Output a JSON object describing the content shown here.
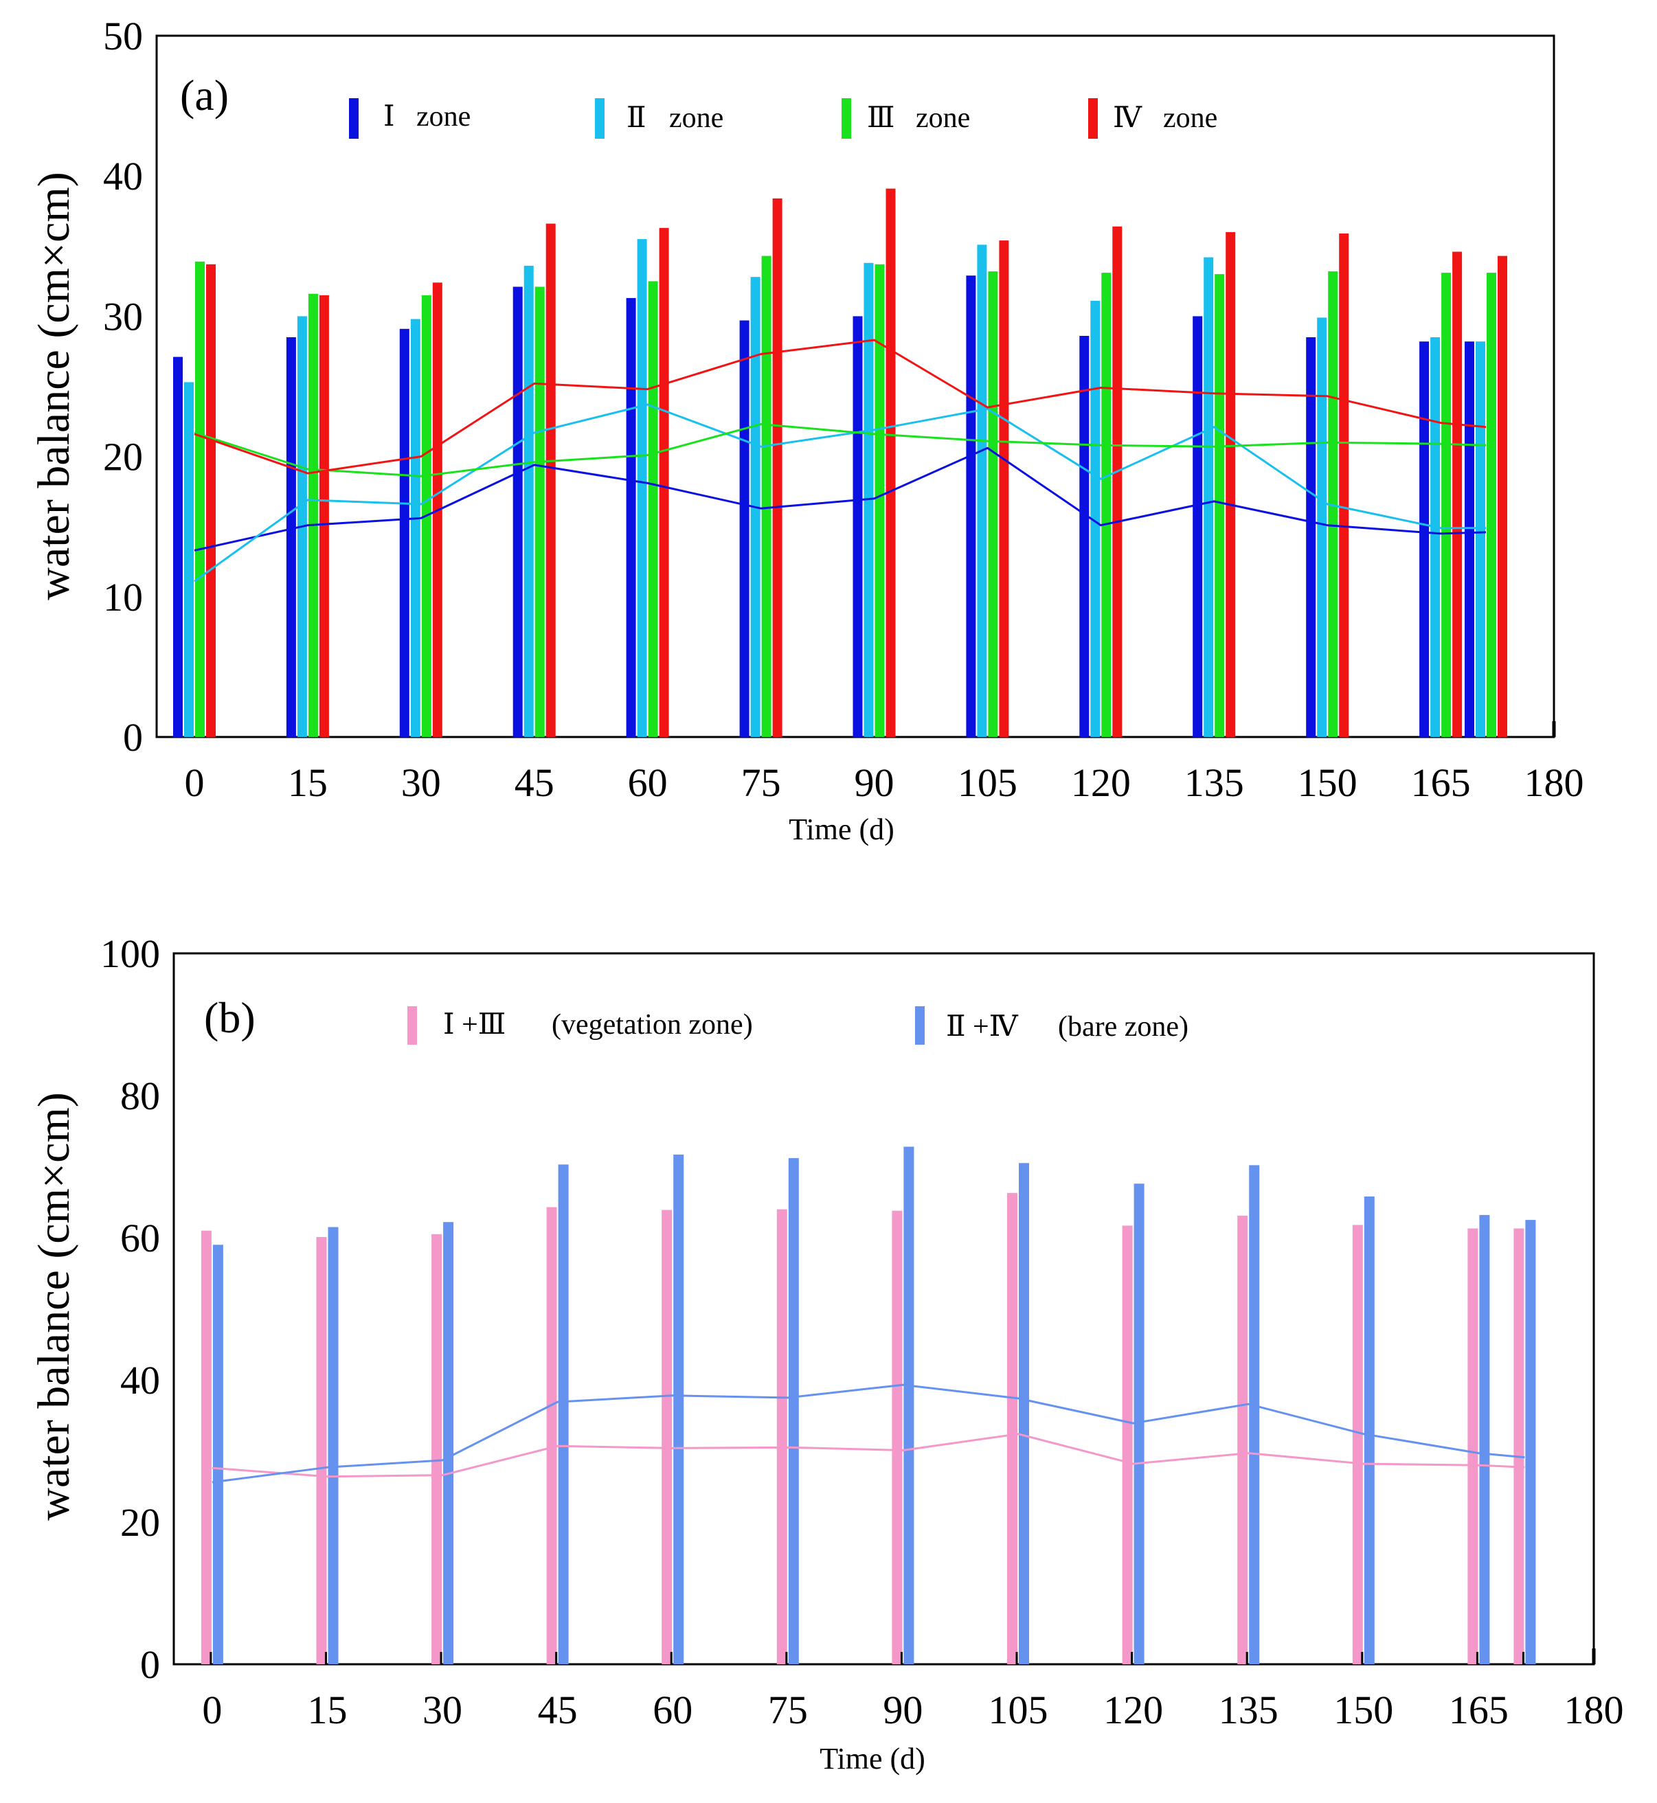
{
  "chart_data": [
    {
      "panel_label": "(a)",
      "type": "bar+line",
      "xlabel": "Time (d)",
      "ylabel": "water balance (cm×cm)",
      "x_ticks": [
        "0",
        "15",
        "30",
        "45",
        "60",
        "75",
        "90",
        "105",
        "120",
        "135",
        "150",
        "165",
        "180"
      ],
      "y_ticks": [
        "0",
        "10",
        "20",
        "30",
        "40",
        "50"
      ],
      "xlim": [
        -5,
        180
      ],
      "ylim": [
        0,
        50
      ],
      "x": [
        0,
        15,
        30,
        45,
        60,
        75,
        90,
        105,
        120,
        135,
        150,
        165
      ],
      "extra_bar_x": 171,
      "legend": [
        {
          "roman": "Ⅰ",
          "text": "zone"
        },
        {
          "roman": "Ⅱ",
          "text": "zone"
        },
        {
          "roman": "Ⅲ",
          "text": "zone"
        },
        {
          "roman": "Ⅳ",
          "text": "zone"
        }
      ],
      "series": [
        {
          "name": "Ⅰ zone",
          "color": "#0a10e0",
          "bars": [
            27.1,
            28.5,
            29.1,
            32.1,
            31.3,
            29.7,
            30.0,
            32.9,
            28.6,
            30.0,
            28.5,
            28.2,
            28.2
          ],
          "line": [
            13.3,
            15.1,
            15.6,
            19.4,
            18.1,
            16.3,
            17.0,
            20.6,
            15.1,
            16.8,
            15.1,
            14.5,
            14.6
          ]
        },
        {
          "name": "Ⅱ zone",
          "color": "#19c0ee",
          "bars": [
            25.3,
            30.0,
            29.8,
            33.6,
            35.5,
            32.8,
            33.8,
            35.1,
            31.1,
            34.2,
            29.9,
            28.5,
            28.2
          ],
          "line": [
            11.1,
            16.9,
            16.6,
            21.7,
            23.7,
            20.7,
            21.9,
            23.4,
            18.4,
            22.1,
            16.6,
            14.9,
            14.9
          ]
        },
        {
          "name": "Ⅲ zone",
          "color": "#19e11c",
          "bars": [
            33.9,
            31.6,
            31.5,
            32.1,
            32.5,
            34.3,
            33.7,
            33.2,
            33.1,
            33.0,
            33.2,
            33.1,
            33.1
          ],
          "line": [
            21.7,
            19.1,
            18.6,
            19.6,
            20.1,
            22.3,
            21.6,
            21.1,
            20.8,
            20.7,
            21.0,
            20.9,
            20.8
          ]
        },
        {
          "name": "Ⅳ zone",
          "color": "#f01414",
          "bars": [
            33.7,
            31.5,
            32.4,
            36.6,
            36.3,
            38.4,
            39.1,
            35.4,
            36.4,
            36.0,
            35.9,
            34.6,
            34.3
          ],
          "line": [
            21.6,
            18.8,
            20.0,
            25.2,
            24.8,
            27.3,
            28.3,
            23.5,
            24.9,
            24.5,
            24.3,
            22.4,
            22.1
          ]
        }
      ]
    },
    {
      "panel_label": "(b)",
      "type": "bar+line",
      "xlabel": "Time (d)",
      "ylabel": "water balance (cm×cm)",
      "x_ticks": [
        "0",
        "15",
        "30",
        "45",
        "60",
        "75",
        "90",
        "105",
        "120",
        "135",
        "150",
        "165",
        "180"
      ],
      "y_ticks": [
        "0",
        "20",
        "40",
        "60",
        "80",
        "100"
      ],
      "xlim": [
        -5,
        180
      ],
      "ylim": [
        0,
        100
      ],
      "x": [
        0,
        15,
        30,
        45,
        60,
        75,
        90,
        105,
        120,
        135,
        150,
        165
      ],
      "extra_bar_x": 171,
      "legend": [
        {
          "roman": "Ⅰ +Ⅲ",
          "text": "(vegetation zone)"
        },
        {
          "roman": "Ⅱ +Ⅳ",
          "text": "(bare zone)"
        }
      ],
      "series": [
        {
          "name": "Ⅰ +Ⅲ (vegetation zone)",
          "color": "#f398c8",
          "bars": [
            61.0,
            60.1,
            60.5,
            64.3,
            63.9,
            64.0,
            63.8,
            66.3,
            61.7,
            63.1,
            61.8,
            61.3,
            61.3
          ],
          "line": [
            27.6,
            26.4,
            26.6,
            30.7,
            30.4,
            30.5,
            30.1,
            32.4,
            28.2,
            29.7,
            28.2,
            28.0,
            27.7
          ]
        },
        {
          "name": "Ⅱ +Ⅳ (bare zone)",
          "color": "#6591ef",
          "bars": [
            59.0,
            61.5,
            62.2,
            70.3,
            71.7,
            71.2,
            72.8,
            70.5,
            67.6,
            70.2,
            65.8,
            63.2,
            62.5
          ],
          "line": [
            25.6,
            27.7,
            28.7,
            36.9,
            37.8,
            37.5,
            39.3,
            37.4,
            33.9,
            36.6,
            32.4,
            29.7,
            29.1
          ]
        }
      ]
    }
  ]
}
